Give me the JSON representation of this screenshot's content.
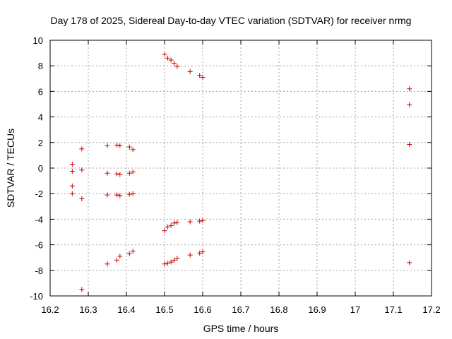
{
  "chart_data": {
    "type": "scatter",
    "title": "Day 178 of 2025, Sidereal Day-to-day VTEC variation (SDTVAR) for receiver nrmg",
    "xlabel": "GPS time / hours",
    "ylabel": "SDTVAR / TECUs",
    "xlim": [
      16.2,
      17.2
    ],
    "ylim": [
      -10,
      10
    ],
    "x_ticks": [
      "16.2",
      "16.3",
      "16.4",
      "16.5",
      "16.6",
      "16.7",
      "16.8",
      "16.9",
      "17",
      "17.1",
      "17.2"
    ],
    "y_ticks": [
      "-10",
      "-8",
      "-6",
      "-4",
      "-2",
      "0",
      "2",
      "4",
      "6",
      "8",
      "10"
    ],
    "grid": true,
    "marker": "plus",
    "marker_color": "#cc0000",
    "series": [
      {
        "name": "SDTVAR",
        "points": [
          [
            16.258,
            0.3
          ],
          [
            16.258,
            -0.25
          ],
          [
            16.258,
            -1.4
          ],
          [
            16.258,
            -2.0
          ],
          [
            16.283,
            1.5
          ],
          [
            16.283,
            -0.15
          ],
          [
            16.283,
            -2.4
          ],
          [
            16.283,
            -9.5
          ],
          [
            16.35,
            1.75
          ],
          [
            16.35,
            -0.4
          ],
          [
            16.35,
            -2.1
          ],
          [
            16.35,
            -7.5
          ],
          [
            16.375,
            1.8
          ],
          [
            16.375,
            -0.45
          ],
          [
            16.375,
            -2.1
          ],
          [
            16.375,
            -7.2
          ],
          [
            16.383,
            1.75
          ],
          [
            16.383,
            -0.5
          ],
          [
            16.383,
            -2.15
          ],
          [
            16.383,
            -6.9
          ],
          [
            16.408,
            1.65
          ],
          [
            16.408,
            -0.4
          ],
          [
            16.408,
            -2.05
          ],
          [
            16.408,
            -6.7
          ],
          [
            16.417,
            1.45
          ],
          [
            16.417,
            -0.3
          ],
          [
            16.417,
            -2.0
          ],
          [
            16.417,
            -6.5
          ],
          [
            16.5,
            8.9
          ],
          [
            16.5,
            -4.9
          ],
          [
            16.5,
            -7.5
          ],
          [
            16.508,
            8.6
          ],
          [
            16.508,
            -4.6
          ],
          [
            16.508,
            -7.45
          ],
          [
            16.517,
            8.45
          ],
          [
            16.517,
            -4.5
          ],
          [
            16.517,
            -7.35
          ],
          [
            16.525,
            8.2
          ],
          [
            16.525,
            -4.3
          ],
          [
            16.525,
            -7.2
          ],
          [
            16.533,
            7.95
          ],
          [
            16.533,
            -4.25
          ],
          [
            16.533,
            -7.05
          ],
          [
            16.567,
            7.55
          ],
          [
            16.567,
            -4.2
          ],
          [
            16.567,
            -6.8
          ],
          [
            16.592,
            7.25
          ],
          [
            16.592,
            -4.15
          ],
          [
            16.592,
            -6.65
          ],
          [
            16.6,
            7.1
          ],
          [
            16.6,
            -4.1
          ],
          [
            16.6,
            -6.55
          ],
          [
            17.142,
            6.2
          ],
          [
            17.142,
            4.95
          ],
          [
            17.142,
            1.85
          ],
          [
            17.142,
            -7.4
          ]
        ]
      }
    ]
  }
}
